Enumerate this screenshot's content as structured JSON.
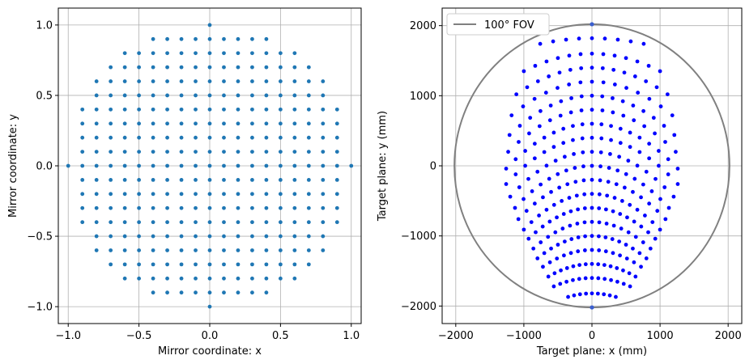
{
  "chart_data": [
    {
      "type": "scatter",
      "xlabel": "Mirror coordinate: x",
      "ylabel": "Mirror coordinate: y",
      "xlim": [
        -1.07,
        1.07
      ],
      "ylim": [
        -1.12,
        1.12
      ],
      "xticks": [
        -1.0,
        -0.5,
        0.0,
        0.5,
        1.0
      ],
      "xtick_labels": [
        "−1.0",
        "−0.5",
        "0.0",
        "0.5",
        "1.0"
      ],
      "yticks": [
        -1.0,
        -0.5,
        0.0,
        0.5,
        1.0
      ],
      "ytick_labels": [
        "−1.0",
        "−0.5",
        "0.0",
        "0.5",
        "1.0"
      ],
      "grid": true,
      "point_color": "#1f77b4",
      "grid_step": 0.1,
      "row_half_widths": [
        {
          "y": 1.0,
          "half_width": 0.0
        },
        {
          "y": 0.9,
          "half_width": 0.4
        },
        {
          "y": 0.8,
          "half_width": 0.6
        },
        {
          "y": 0.7,
          "half_width": 0.7
        },
        {
          "y": 0.6,
          "half_width": 0.8
        },
        {
          "y": 0.5,
          "half_width": 0.8
        },
        {
          "y": 0.4,
          "half_width": 0.9
        },
        {
          "y": 0.3,
          "half_width": 0.9
        },
        {
          "y": 0.2,
          "half_width": 0.9
        },
        {
          "y": 0.1,
          "half_width": 0.9
        },
        {
          "y": 0.0,
          "half_width": 1.0
        },
        {
          "y": -0.1,
          "half_width": 0.9
        },
        {
          "y": -0.2,
          "half_width": 0.9
        },
        {
          "y": -0.3,
          "half_width": 0.9
        },
        {
          "y": -0.4,
          "half_width": 0.9
        },
        {
          "y": -0.5,
          "half_width": 0.8
        },
        {
          "y": -0.6,
          "half_width": 0.8
        },
        {
          "y": -0.7,
          "half_width": 0.7
        },
        {
          "y": -0.8,
          "half_width": 0.6
        },
        {
          "y": -0.9,
          "half_width": 0.4
        },
        {
          "y": -1.0,
          "half_width": 0.0
        }
      ]
    },
    {
      "type": "scatter",
      "xlabel": "Target plane: x (mm)",
      "ylabel": "Target plane: y (mm)",
      "xlim": [
        -2200,
        2200
      ],
      "ylim": [
        -2250,
        2250
      ],
      "xticks": [
        -2000,
        -1000,
        0,
        1000,
        2000
      ],
      "xtick_labels": [
        "−2000",
        "−1000",
        "0",
        "1000",
        "2000"
      ],
      "yticks": [
        -2000,
        -1000,
        0,
        1000,
        2000
      ],
      "ytick_labels": [
        "−2000",
        "−1000",
        "0",
        "1000",
        "2000"
      ],
      "grid": true,
      "point_color": "#0000ff",
      "legend": {
        "position": "top-left",
        "entries": [
          {
            "label": "100° FOV",
            "color": "#808080"
          }
        ]
      },
      "circle": {
        "radius": 2020,
        "color": "#808080"
      },
      "extra_points": [
        [
          0,
          2020
        ],
        [
          0,
          -2020
        ]
      ],
      "extra_point_color": "#3b5fcf",
      "rows": [
        {
          "y": 1820,
          "half_width": 760,
          "n": 9,
          "bend": 80
        },
        {
          "y": 1600,
          "half_width": 1000,
          "n": 13,
          "bend": 250
        },
        {
          "y": 1400,
          "half_width": 1110,
          "n": 15,
          "bend": 380
        },
        {
          "y": 1200,
          "half_width": 1180,
          "n": 15,
          "bend": 480
        },
        {
          "y": 1000,
          "half_width": 1210,
          "n": 17,
          "bend": 560
        },
        {
          "y": 800,
          "half_width": 1230,
          "n": 17,
          "bend": 600
        },
        {
          "y": 600,
          "half_width": 1260,
          "n": 19,
          "bend": 640
        },
        {
          "y": 400,
          "half_width": 1260,
          "n": 19,
          "bend": 660
        },
        {
          "y": 200,
          "half_width": 1200,
          "n": 19,
          "bend": 640
        },
        {
          "y": 0,
          "half_width": 1130,
          "n": 19,
          "bend": 600
        },
        {
          "y": -200,
          "half_width": 1080,
          "n": 19,
          "bend": 560
        },
        {
          "y": -400,
          "half_width": 1000,
          "n": 19,
          "bend": 510
        },
        {
          "y": -600,
          "half_width": 930,
          "n": 19,
          "bend": 440
        },
        {
          "y": -800,
          "half_width": 860,
          "n": 17,
          "bend": 380
        },
        {
          "y": -1000,
          "half_width": 800,
          "n": 17,
          "bend": 320
        },
        {
          "y": -1200,
          "half_width": 720,
          "n": 15,
          "bend": 240
        },
        {
          "y": -1400,
          "half_width": 640,
          "n": 15,
          "bend": 180
        },
        {
          "y": -1600,
          "half_width": 560,
          "n": 13,
          "bend": 120
        },
        {
          "y": -1820,
          "half_width": 350,
          "n": 9,
          "bend": 50
        }
      ]
    }
  ]
}
